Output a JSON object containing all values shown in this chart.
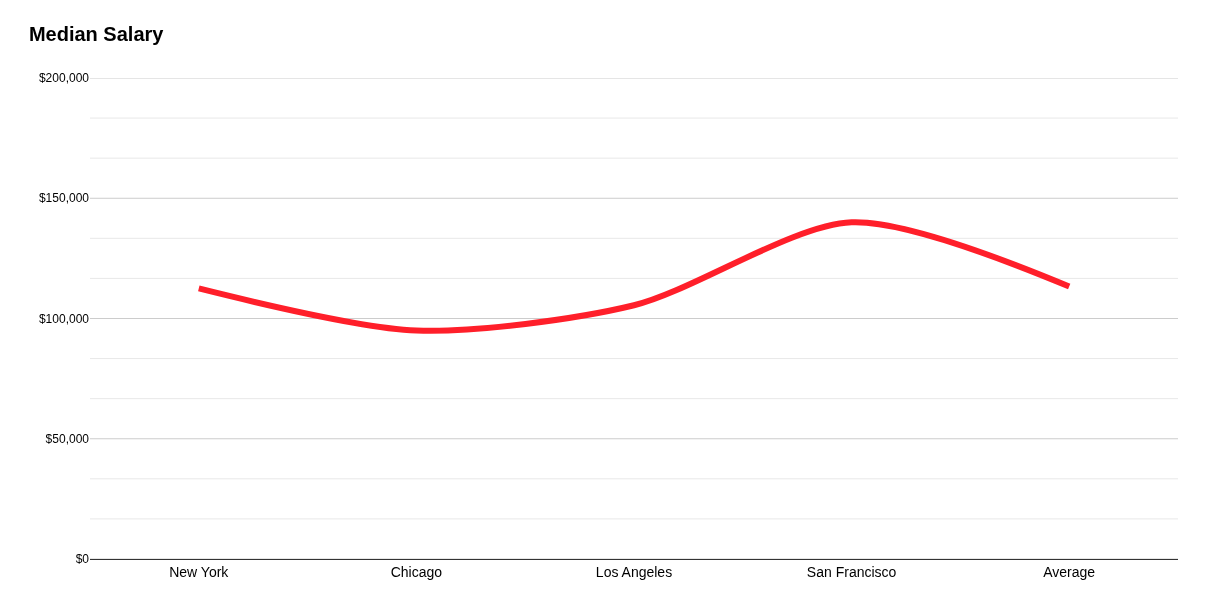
{
  "chart_data": {
    "type": "line",
    "title": "Median Salary",
    "categories": [
      "New York",
      "Chicago",
      "Los Angeles",
      "San Francisco",
      "Average"
    ],
    "series": [
      {
        "color": "#ff1f2a",
        "values": [
          112500,
          95000,
          105500,
          140000,
          113300
        ]
      }
    ],
    "ylim": [
      0,
      200000
    ],
    "yticks": [
      {
        "value": 0,
        "label": "$0"
      },
      {
        "value": 16667,
        "label": null
      },
      {
        "value": 33333,
        "label": null
      },
      {
        "value": 50000,
        "label": "$50,000"
      },
      {
        "value": 66667,
        "label": null
      },
      {
        "value": 83333,
        "label": null
      },
      {
        "value": 100000,
        "label": "$100,000"
      },
      {
        "value": 116667,
        "label": null
      },
      {
        "value": 133333,
        "label": null
      },
      {
        "value": 150000,
        "label": "$150,000"
      },
      {
        "value": 166667,
        "label": null
      },
      {
        "value": 183333,
        "label": null
      },
      {
        "value": 200000,
        "label": "$200,000"
      }
    ],
    "grid": true,
    "marker": "none",
    "line_style": "solid"
  }
}
